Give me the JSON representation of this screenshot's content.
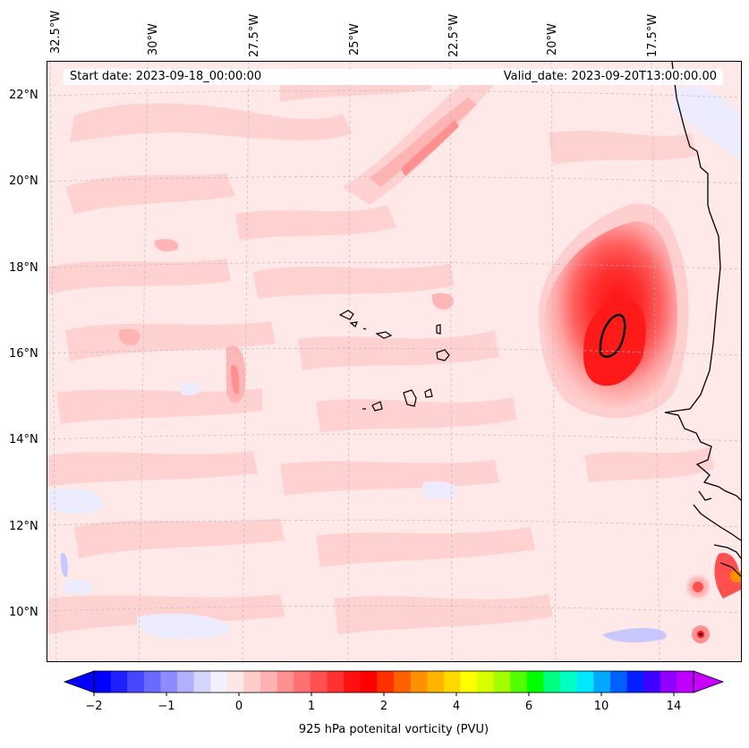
{
  "longitude_labels": [
    "32.5°W",
    "30°W",
    "27.5°W",
    "25°W",
    "22.5°W",
    "20°W",
    "17.5°W"
  ],
  "latitude_labels": [
    "22°N",
    "20°N",
    "18°N",
    "16°N",
    "14°N",
    "12°N",
    "10°N"
  ],
  "info": {
    "start_date": "Start date: 2023-09-18_00:00:00",
    "valid_date": "Valid_date: 2023-09-20T13:00:00.00"
  },
  "colorbar": {
    "tick_labels": [
      "−2",
      "−1",
      "0",
      "1",
      "2",
      "4",
      "6",
      "10",
      "14"
    ],
    "title": "925 hPa potenital vorticity (PVU)",
    "colors": [
      "#0000ff",
      "#2020ff",
      "#4646ff",
      "#6a6aff",
      "#8c8cff",
      "#b0b0ff",
      "#d4d4ff",
      "#f0f0ff",
      "#ffe6e6",
      "#ffcccc",
      "#ffb0b0",
      "#ff9090",
      "#ff7070",
      "#ff5050",
      "#ff3030",
      "#ff1010",
      "#ff0000",
      "#ff3000",
      "#ff6000",
      "#ff9000",
      "#ffb400",
      "#ffd800",
      "#ffff00",
      "#d8ff00",
      "#a0ff00",
      "#50ff00",
      "#00ff00",
      "#00ff80",
      "#00ffc0",
      "#00e8ff",
      "#00a8ff",
      "#0060ff",
      "#0020ff",
      "#4000ff",
      "#9000ff",
      "#c000ff"
    ]
  }
}
